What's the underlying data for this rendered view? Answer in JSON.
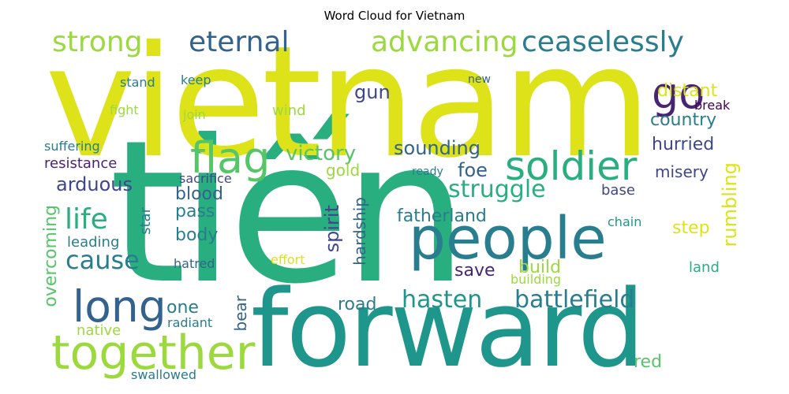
{
  "title": "Word Cloud for Vietnam",
  "colors": {
    "yellow": "#dde318",
    "lime": "#9bd93c",
    "green": "#55c667",
    "teal_green": "#29af7f",
    "teal": "#1f968b",
    "blue_teal": "#287d8e",
    "blue": "#33638d",
    "indigo": "#3f4788",
    "purple": "#482475",
    "dark_purple": "#440154"
  },
  "words": {
    "tien": "tiến",
    "vietnam": "vietnam",
    "forward": "forward",
    "people": "people",
    "together": "together",
    "soldier": "soldier",
    "flag": "flag",
    "long": "long",
    "go": "go",
    "strong": "strong",
    "eternal": "eternal",
    "advancing": "advancing",
    "ceaselessly": "ceaselessly",
    "struggle": "struggle",
    "hasten": "hasten",
    "battlefield": "battlefield",
    "life": "life",
    "cause": "cause",
    "victory": "victory",
    "sounding": "sounding",
    "country": "country",
    "hurried": "hurried",
    "distant": "distant",
    "gun": "gun",
    "arduous": "arduous",
    "resistance": "resistance",
    "fatherland": "fatherland",
    "spirit": "spirit",
    "hardship": "hardship",
    "pass": "pass",
    "body": "body",
    "blood": "blood",
    "foe": "foe",
    "gold": "gold",
    "misery": "misery",
    "rumbling": "rumbling",
    "step": "step",
    "overcoming": "overcoming",
    "build": "build",
    "save": "save",
    "road": "road",
    "one": "one",
    "bear": "bear",
    "red": "red",
    "native": "native",
    "radiant": "radiant",
    "swallowed": "swallowed",
    "leading": "leading",
    "star": "star",
    "hatred": "hatred",
    "effort": "effort",
    "building": "building",
    "land": "land",
    "chain": "chain",
    "base": "base",
    "ready": "ready",
    "sacrifice": "sacrifice",
    "suffering": "suffering",
    "wind": "wind",
    "join": "join",
    "fight": "fight",
    "stand": "stand",
    "keep": "keep",
    "new": "new",
    "break": "break"
  }
}
